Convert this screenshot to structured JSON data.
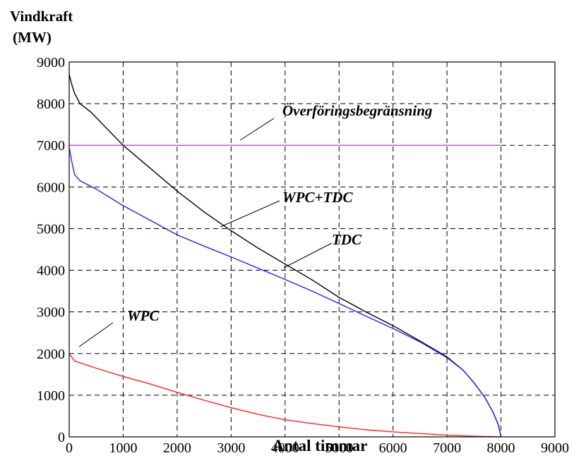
{
  "chart_data": {
    "type": "line",
    "ylabel_line1": "Vindkraft",
    "ylabel_line2": "(MW)",
    "xlabel": "Antal timmar",
    "xlim": [
      0,
      9000
    ],
    "ylim": [
      0,
      9000
    ],
    "xticks": [
      "0",
      "1000",
      "2000",
      "3000",
      "4000",
      "5000",
      "6000",
      "7000",
      "8000",
      "9000"
    ],
    "yticks": [
      "0",
      "1000",
      "2000",
      "3000",
      "4000",
      "5000",
      "6000",
      "7000",
      "8000",
      "9000"
    ],
    "grid": true,
    "series": [
      {
        "name": "Överföringsbegränsning",
        "color": "#e040e0",
        "x": [
          0,
          8000
        ],
        "y": [
          7000,
          7000
        ]
      },
      {
        "name": "WPC+TDC",
        "color": "#000000",
        "x": [
          0,
          50,
          100,
          200,
          400,
          700,
          1000,
          1500,
          2000,
          2500,
          3000,
          3500,
          4000,
          4500,
          5000,
          5500,
          6000,
          6500,
          7000,
          7300,
          7500,
          7700,
          7850,
          7950,
          8000
        ],
        "y": [
          8700,
          8450,
          8250,
          8000,
          7800,
          7400,
          7000,
          6450,
          5900,
          5400,
          4950,
          4530,
          4150,
          3770,
          3350,
          3000,
          2670,
          2300,
          1920,
          1600,
          1300,
          950,
          600,
          300,
          0
        ]
      },
      {
        "name": "TDC",
        "color": "#2020ff",
        "x": [
          0,
          50,
          100,
          200,
          500,
          1000,
          1500,
          2000,
          2500,
          3000,
          3500,
          4000,
          4500,
          5000,
          5500,
          6000,
          6500,
          7000,
          7300,
          7500,
          7700,
          7850,
          7950,
          8000
        ],
        "y": [
          6950,
          6600,
          6300,
          6150,
          5950,
          5550,
          5200,
          4850,
          4580,
          4320,
          4050,
          3780,
          3500,
          3200,
          2900,
          2600,
          2280,
          1900,
          1600,
          1300,
          950,
          600,
          300,
          0
        ]
      },
      {
        "name": "WPC",
        "color": "#ff2020",
        "x": [
          0,
          100,
          200,
          500,
          1000,
          1500,
          2000,
          2500,
          3000,
          3500,
          4000,
          4500,
          5000,
          5500,
          6000,
          6500,
          7000,
          7500,
          8000
        ],
        "y": [
          2000,
          1820,
          1780,
          1650,
          1450,
          1270,
          1070,
          880,
          700,
          540,
          410,
          320,
          240,
          170,
          120,
          80,
          40,
          15,
          0
        ]
      }
    ]
  }
}
